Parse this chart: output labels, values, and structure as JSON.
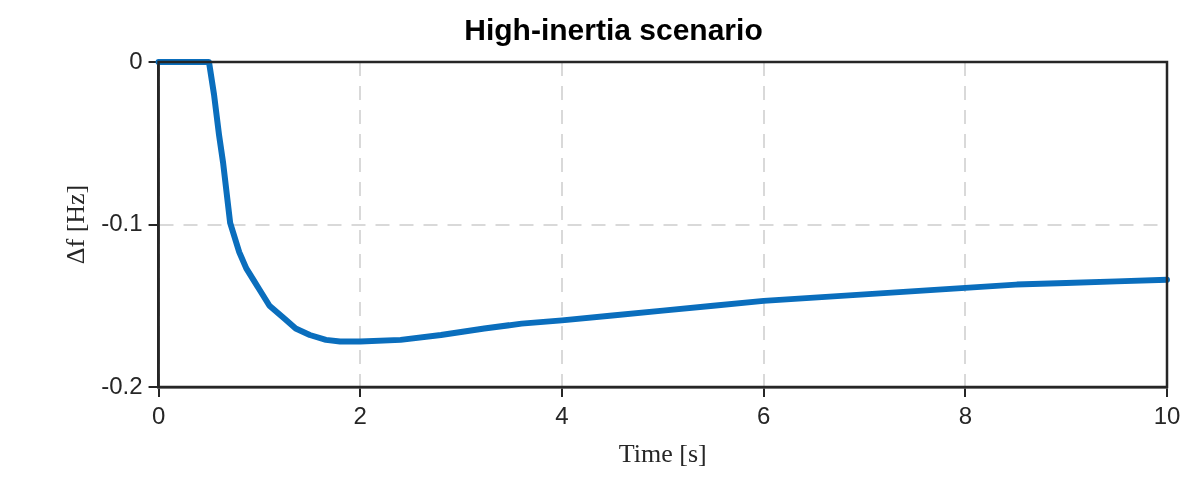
{
  "chart_data": {
    "type": "line",
    "title": "High-inertia scenario",
    "xlabel": "Time [s]",
    "ylabel": "Δf [Hz]",
    "x": [
      0,
      0.5,
      0.55,
      0.6,
      0.64,
      0.71,
      0.8,
      0.87,
      1.0,
      1.1,
      1.25,
      1.36,
      1.5,
      1.66,
      1.8,
      2,
      2.4,
      2.8,
      3.23,
      3.6,
      4,
      4.5,
      5,
      5.5,
      6,
      6.5,
      7,
      7.5,
      8,
      8.5,
      9,
      9.5,
      10
    ],
    "series": [
      {
        "color": "#0a6ebd",
        "values": [
          0,
          0,
          -0.02,
          -0.045,
          -0.062,
          -0.099,
          -0.117,
          -0.127,
          -0.14,
          -0.15,
          -0.158,
          -0.164,
          -0.168,
          -0.171,
          -0.172,
          -0.172,
          -0.171,
          -0.168,
          -0.164,
          -0.161,
          -0.159,
          -0.156,
          -0.153,
          -0.15,
          -0.147,
          -0.145,
          -0.143,
          -0.141,
          -0.139,
          -0.137,
          -0.136,
          -0.135,
          -0.134
        ]
      }
    ],
    "xlim": [
      0,
      10
    ],
    "xticks": [
      0,
      2,
      4,
      6,
      8,
      10
    ],
    "ylim": [
      -0.2,
      0
    ],
    "yticks": [
      -0.2,
      -0.1,
      0
    ],
    "grid": true,
    "legend": false,
    "marker": "none",
    "line_style": "solid"
  }
}
